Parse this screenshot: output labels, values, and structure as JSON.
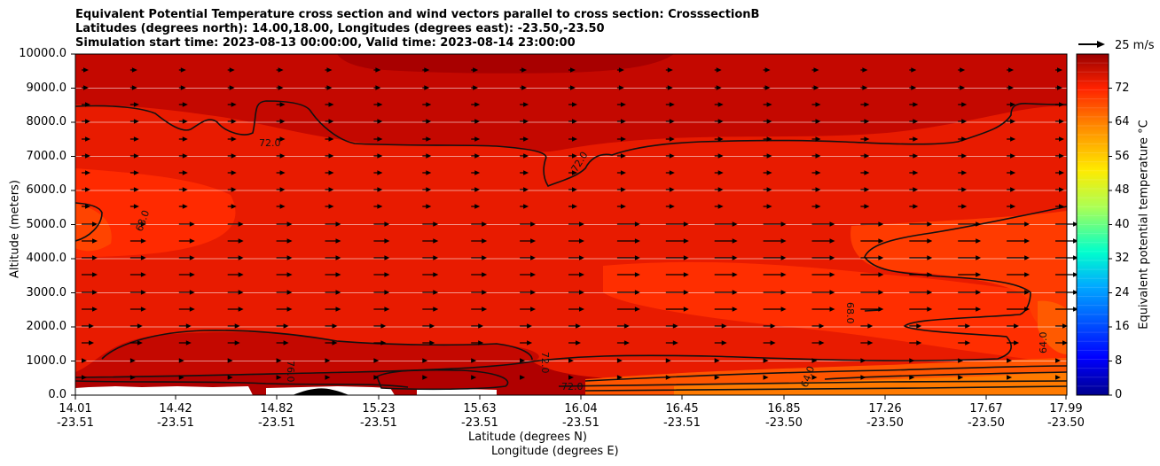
{
  "chart_data": {
    "type": "heatmap",
    "title_lines": [
      "Equivalent Potential Temperature cross section and wind vectors parallel to cross section: CrosssectionB",
      "Latitudes (degrees north): 14.00,18.00, Longitudes (degrees east): -23.50,-23.50",
      "Simulation start time: 2023-08-13 00:00:00, Valid time: 2023-08-14 23:00:00"
    ],
    "ylabel": "Altitude (meters)",
    "xlabel_lat": "Latitude (degrees N)",
    "xlabel_lon": "Longitude (degrees E)",
    "ylim": [
      0,
      10000
    ],
    "yticks": [
      "0.0",
      "1000.0",
      "2000.0",
      "3000.0",
      "4000.0",
      "5000.0",
      "6000.0",
      "7000.0",
      "8000.0",
      "9000.0",
      "10000.0"
    ],
    "xticks": [
      {
        "lat": "14.01",
        "lon": "-23.51"
      },
      {
        "lat": "14.42",
        "lon": "-23.51"
      },
      {
        "lat": "14.82",
        "lon": "-23.51"
      },
      {
        "lat": "15.23",
        "lon": "-23.51"
      },
      {
        "lat": "15.63",
        "lon": "-23.51"
      },
      {
        "lat": "16.04",
        "lon": "-23.51"
      },
      {
        "lat": "16.45",
        "lon": "-23.51"
      },
      {
        "lat": "16.85",
        "lon": "-23.50"
      },
      {
        "lat": "17.26",
        "lon": "-23.50"
      },
      {
        "lat": "17.67",
        "lon": "-23.50"
      },
      {
        "lat": "17.99",
        "lon": "-23.50"
      }
    ],
    "colorbar": {
      "label": "Equivalent potential temperature $^\\circ$C",
      "label_display": "Equivalent potential temperature °C",
      "range": [
        0,
        76
      ],
      "ticks": [
        "0",
        "8",
        "16",
        "24",
        "32",
        "40",
        "48",
        "56",
        "64",
        "72"
      ],
      "colormap": "jet"
    },
    "contour_labels": [
      "72.0",
      "68.0",
      "64.0",
      "76.0"
    ],
    "wind_key": {
      "label": "25 m/s"
    },
    "grid": true
  },
  "colors": {
    "field_base": "#e81b00",
    "field_dark": "#c40800",
    "field_darkest": "#a80000",
    "field_light": "#ff2a00",
    "field_orange": "#ff6a00",
    "contour": "#111111",
    "arrow": "#000000"
  }
}
